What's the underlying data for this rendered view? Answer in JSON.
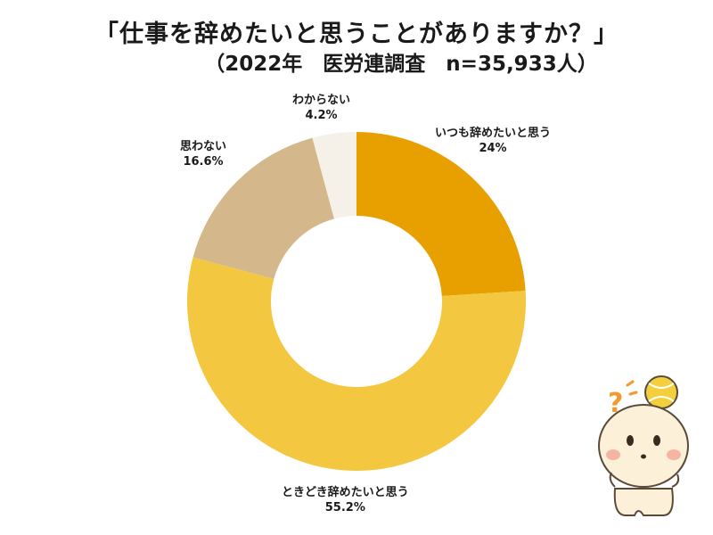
{
  "title": "「仕事を辞めたいと思うことがありますか？」",
  "subtitle": "（2022年　医労連調査　n=35,933人）",
  "chart_data": {
    "type": "pie",
    "donut": true,
    "categories": [
      "いつも辞めたいと思う",
      "ときどき辞めたいと思う",
      "思わない",
      "わからない"
    ],
    "values": [
      24,
      55.2,
      16.6,
      4.2
    ],
    "value_labels": [
      "24%",
      "55.2%",
      "16.6%",
      "4.2%"
    ],
    "colors": [
      "#E8A000",
      "#F4C741",
      "#D4B88C",
      "#F5F0E8"
    ],
    "start_angle": "12 o'clock",
    "direction": "clockwise"
  },
  "mascot_icon": "confused-mascot-icon"
}
